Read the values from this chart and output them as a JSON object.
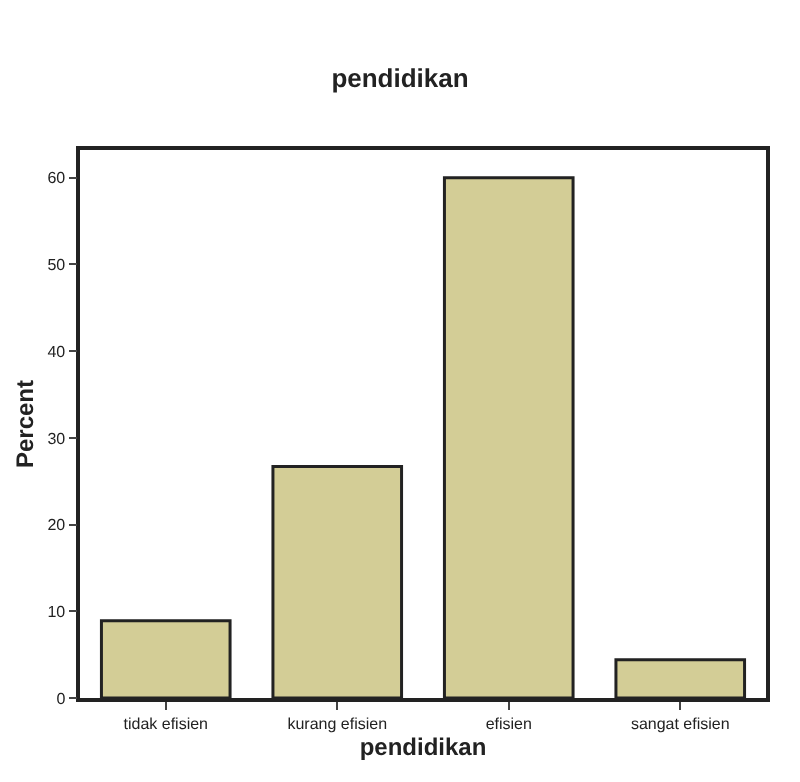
{
  "chart_data": {
    "type": "bar",
    "title": "pendidikan",
    "xlabel": "pendidikan",
    "ylabel": "Percent",
    "categories": [
      "tidak efisien",
      "kurang efisien",
      "efisien",
      "sangat efisien"
    ],
    "values": [
      8.9,
      26.7,
      60.0,
      4.4
    ],
    "color": "#d3cd96",
    "ylim": [
      0,
      63.2
    ],
    "yticks": [
      0,
      10,
      20,
      30,
      40,
      50,
      60
    ]
  }
}
